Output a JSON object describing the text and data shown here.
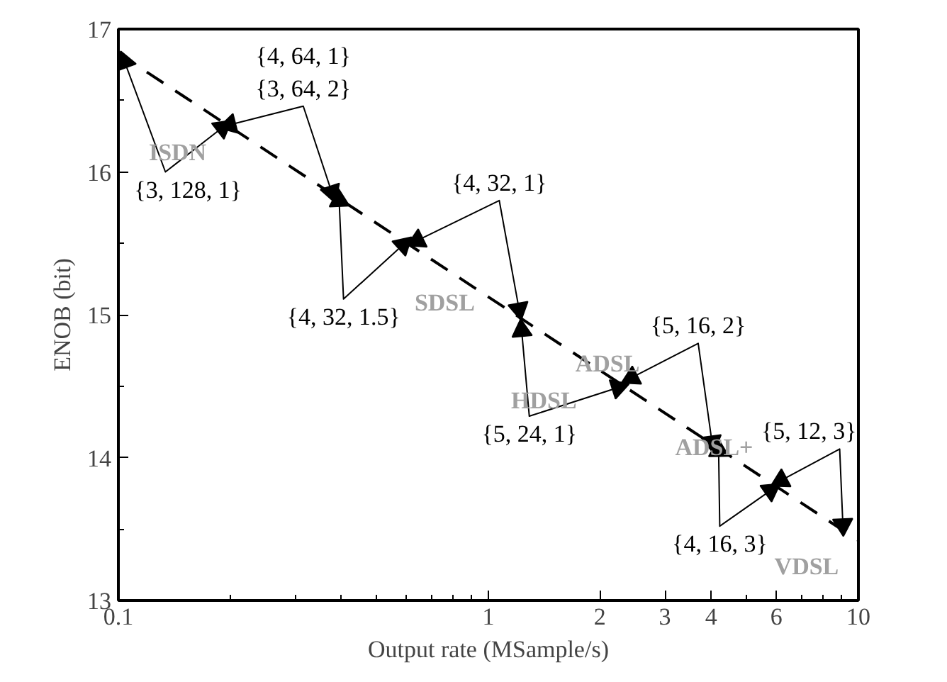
{
  "chart_data": {
    "type": "line",
    "xlabel": "Output rate (MSample/s)",
    "ylabel": "ENOB (bit)",
    "log": "x",
    "xlim": [
      0.1,
      10
    ],
    "ylim": [
      13,
      17
    ],
    "xticks": [
      0.1,
      1,
      2,
      3,
      4,
      6,
      10
    ],
    "yticks": [
      13,
      14,
      15,
      16,
      17
    ],
    "grid": false,
    "series": [
      {
        "line_style": "dashed",
        "color": "#000000",
        "x": [
          0.1,
          10
        ],
        "values": [
          16.83,
          13.42
        ]
      },
      {
        "marker": "triangle",
        "name": "{3, 128, 1}",
        "color": "#000000",
        "x": [
          0.104,
          0.134,
          0.191
        ],
        "values": [
          16.77,
          16.0,
          16.31
        ]
      },
      {
        "marker": "triangle",
        "name": "{4, 64, 1}\n{3, 64, 2}",
        "color": "#000000",
        "x": [
          0.2,
          0.316,
          0.377
        ],
        "values": [
          16.33,
          16.46,
          15.86
        ]
      },
      {
        "marker": "triangle",
        "name": "{4, 32, 1.5}",
        "color": "#000000",
        "x": [
          0.395,
          0.406,
          0.588
        ],
        "values": [
          15.8,
          15.11,
          15.49
        ]
      },
      {
        "marker": "triangle",
        "name": "{4, 32, 1}",
        "color": "#000000",
        "x": [
          0.643,
          1.07,
          1.21
        ],
        "values": [
          15.52,
          15.8,
          15.04
        ]
      },
      {
        "marker": "triangle",
        "name": "{5, 24, 1}",
        "color": "#000000",
        "x": [
          1.23,
          1.29,
          2.24
        ],
        "values": [
          14.89,
          14.29,
          14.49
        ]
      },
      {
        "marker": "triangle",
        "name": "{5, 16, 2}",
        "color": "#000000",
        "x": [
          2.44,
          3.69,
          4.02
        ],
        "values": [
          14.56,
          14.8,
          14.11
        ]
      },
      {
        "marker": "triangle",
        "name": "{4, 16, 3}",
        "color": "#000000",
        "x": [
          4.19,
          4.22,
          5.79
        ],
        "values": [
          14.05,
          13.52,
          13.77
        ]
      },
      {
        "marker": "triangle",
        "name": "{5, 12, 3}",
        "color": "#000000",
        "x": [
          6.18,
          8.9,
          9.08
        ],
        "values": [
          13.84,
          14.06,
          13.53
        ]
      }
    ],
    "annotations": [
      "ISDN",
      "SDSL",
      "HDSL",
      "ADSL",
      "ADSL+",
      "VDSL"
    ]
  }
}
